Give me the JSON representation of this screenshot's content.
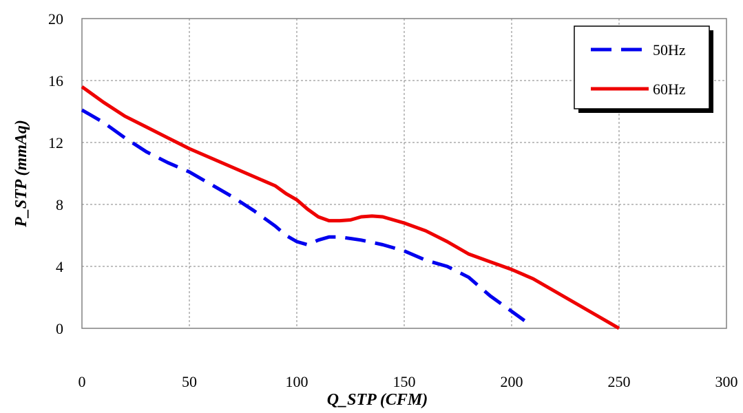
{
  "chart_data": {
    "type": "line",
    "title": "",
    "xlabel": "Q_STP (CFM)",
    "ylabel": "P_STP (mmAq)",
    "xlim": [
      0,
      300
    ],
    "ylim": [
      0,
      20
    ],
    "xticks": [
      0,
      50,
      100,
      150,
      200,
      250,
      300
    ],
    "yticks": [
      0,
      4,
      8,
      12,
      16,
      20
    ],
    "xtick_labels": [
      "0",
      "50",
      "100",
      "150",
      "200",
      "250",
      "300"
    ],
    "ytick_labels": [
      "0",
      "4",
      "8",
      "12",
      "16",
      "20"
    ],
    "grid": true,
    "legend_position": "top-right",
    "series": [
      {
        "name": "50Hz",
        "color": "#0000ee",
        "style": "dashed",
        "points": [
          [
            0,
            14.1
          ],
          [
            10,
            13.3
          ],
          [
            20,
            12.3
          ],
          [
            30,
            11.4
          ],
          [
            40,
            10.7
          ],
          [
            50,
            10.1
          ],
          [
            60,
            9.3
          ],
          [
            70,
            8.5
          ],
          [
            80,
            7.6
          ],
          [
            90,
            6.6
          ],
          [
            95,
            6.0
          ],
          [
            100,
            5.6
          ],
          [
            105,
            5.4
          ],
          [
            110,
            5.7
          ],
          [
            115,
            5.9
          ],
          [
            120,
            5.9
          ],
          [
            125,
            5.8
          ],
          [
            130,
            5.7
          ],
          [
            140,
            5.4
          ],
          [
            150,
            5.0
          ],
          [
            160,
            4.4
          ],
          [
            170,
            4.0
          ],
          [
            180,
            3.3
          ],
          [
            190,
            2.1
          ],
          [
            200,
            1.1
          ],
          [
            206,
            0.5
          ]
        ]
      },
      {
        "name": "60Hz",
        "color": "#ee0000",
        "style": "solid",
        "points": [
          [
            0,
            15.6
          ],
          [
            10,
            14.6
          ],
          [
            20,
            13.7
          ],
          [
            30,
            13.0
          ],
          [
            40,
            12.3
          ],
          [
            50,
            11.6
          ],
          [
            60,
            11.0
          ],
          [
            70,
            10.4
          ],
          [
            80,
            9.8
          ],
          [
            90,
            9.2
          ],
          [
            95,
            8.7
          ],
          [
            100,
            8.3
          ],
          [
            105,
            7.7
          ],
          [
            110,
            7.2
          ],
          [
            115,
            6.95
          ],
          [
            120,
            6.95
          ],
          [
            125,
            7.0
          ],
          [
            130,
            7.2
          ],
          [
            135,
            7.25
          ],
          [
            140,
            7.2
          ],
          [
            150,
            6.8
          ],
          [
            160,
            6.3
          ],
          [
            170,
            5.6
          ],
          [
            180,
            4.8
          ],
          [
            190,
            4.3
          ],
          [
            200,
            3.8
          ],
          [
            210,
            3.2
          ],
          [
            220,
            2.4
          ],
          [
            230,
            1.6
          ],
          [
            240,
            0.8
          ],
          [
            250,
            0.0
          ]
        ]
      }
    ]
  }
}
